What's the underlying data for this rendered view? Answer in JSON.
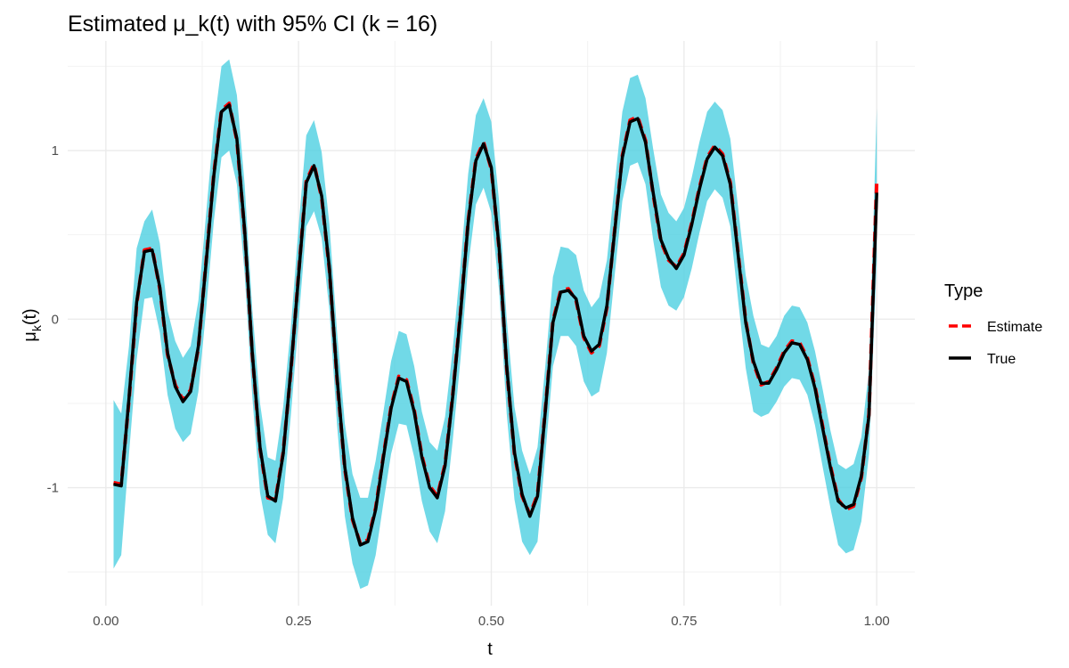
{
  "chart_data": {
    "type": "line",
    "title": "Estimated μ_k(t) with 95% CI (k = 16)",
    "xlabel": "t",
    "ylabel": "μk(t)",
    "xlim": [
      -0.0495,
      1.0495
    ],
    "ylim": [
      -1.7,
      1.65
    ],
    "x_ticks": [
      0,
      0.25,
      0.5,
      0.75,
      1
    ],
    "x_tick_labels": [
      "0.00",
      "0.25",
      "0.50",
      "0.75",
      "1.00"
    ],
    "y_ticks": [
      -1,
      0,
      1
    ],
    "y_tick_labels": [
      "-1",
      "0",
      "1"
    ],
    "grid": true,
    "legend": {
      "title": "Type",
      "position": "right",
      "entries": [
        {
          "label": "Estimate",
          "color": "#ff0000",
          "style": "dashed"
        },
        {
          "label": "True",
          "color": "#000000",
          "style": "solid"
        }
      ]
    },
    "ribbon_color": "#4dd0e1",
    "x": [
      0.01,
      0.02,
      0.03,
      0.04,
      0.05,
      0.06,
      0.07,
      0.08,
      0.09,
      0.1,
      0.11,
      0.12,
      0.13,
      0.14,
      0.15,
      0.16,
      0.17,
      0.18,
      0.19,
      0.2,
      0.21,
      0.22,
      0.23,
      0.24,
      0.25,
      0.26,
      0.27,
      0.28,
      0.29,
      0.3,
      0.31,
      0.32,
      0.33,
      0.34,
      0.35,
      0.36,
      0.37,
      0.38,
      0.39,
      0.4,
      0.41,
      0.42,
      0.43,
      0.44,
      0.45,
      0.46,
      0.47,
      0.48,
      0.49,
      0.5,
      0.51,
      0.52,
      0.53,
      0.54,
      0.55,
      0.56,
      0.57,
      0.58,
      0.59,
      0.6,
      0.61,
      0.62,
      0.63,
      0.64,
      0.65,
      0.66,
      0.67,
      0.68,
      0.69,
      0.7,
      0.71,
      0.72,
      0.73,
      0.74,
      0.75,
      0.76,
      0.77,
      0.78,
      0.79,
      0.8,
      0.81,
      0.82,
      0.83,
      0.84,
      0.85,
      0.86,
      0.87,
      0.88,
      0.89,
      0.9,
      0.91,
      0.92,
      0.93,
      0.94,
      0.95,
      0.96,
      0.97,
      0.98,
      0.99,
      1.0
    ],
    "series": [
      {
        "name": "True",
        "values": [
          -0.98,
          -0.99,
          -0.47,
          0.1,
          0.4,
          0.41,
          0.19,
          -0.2,
          -0.4,
          -0.49,
          -0.43,
          -0.16,
          0.33,
          0.85,
          1.23,
          1.27,
          1.07,
          0.53,
          -0.2,
          -0.76,
          -1.05,
          -1.08,
          -0.8,
          -0.3,
          0.26,
          0.81,
          0.91,
          0.73,
          0.3,
          -0.35,
          -0.88,
          -1.18,
          -1.34,
          -1.32,
          -1.13,
          -0.82,
          -0.53,
          -0.35,
          -0.37,
          -0.55,
          -0.82,
          -1.0,
          -1.06,
          -0.87,
          -0.46,
          0.03,
          0.57,
          0.94,
          1.04,
          0.9,
          0.43,
          -0.28,
          -0.79,
          -1.04,
          -1.17,
          -1.05,
          -0.55,
          -0.02,
          0.16,
          0.17,
          0.12,
          -0.1,
          -0.19,
          -0.15,
          0.08,
          0.52,
          0.96,
          1.17,
          1.19,
          1.05,
          0.75,
          0.47,
          0.36,
          0.3,
          0.38,
          0.56,
          0.77,
          0.95,
          1.02,
          0.97,
          0.8,
          0.39,
          -0.02,
          -0.25,
          -0.38,
          -0.38,
          -0.3,
          -0.2,
          -0.14,
          -0.15,
          -0.24,
          -0.41,
          -0.65,
          -0.88,
          -1.08,
          -1.12,
          -1.1,
          -0.93,
          -0.57,
          0.75
        ]
      },
      {
        "name": "Estimate",
        "values": [
          -0.97,
          -0.98,
          -0.48,
          0.09,
          0.41,
          0.42,
          0.18,
          -0.21,
          -0.39,
          -0.48,
          -0.42,
          -0.17,
          0.34,
          0.86,
          1.24,
          1.28,
          1.06,
          0.52,
          -0.21,
          -0.77,
          -1.06,
          -1.07,
          -0.79,
          -0.31,
          0.27,
          0.82,
          0.92,
          0.72,
          0.29,
          -0.36,
          -0.89,
          -1.19,
          -1.33,
          -1.31,
          -1.12,
          -0.81,
          -0.52,
          -0.34,
          -0.36,
          -0.54,
          -0.81,
          -0.99,
          -1.05,
          -0.86,
          -0.45,
          0.04,
          0.58,
          0.95,
          1.05,
          0.89,
          0.42,
          -0.29,
          -0.8,
          -1.05,
          -1.16,
          -1.04,
          -0.54,
          -0.01,
          0.17,
          0.18,
          0.11,
          -0.11,
          -0.2,
          -0.16,
          0.07,
          0.53,
          0.97,
          1.18,
          1.2,
          1.06,
          0.74,
          0.46,
          0.35,
          0.31,
          0.39,
          0.57,
          0.78,
          0.96,
          1.03,
          0.98,
          0.81,
          0.4,
          -0.01,
          -0.26,
          -0.39,
          -0.37,
          -0.29,
          -0.19,
          -0.13,
          -0.14,
          -0.23,
          -0.4,
          -0.64,
          -0.87,
          -1.07,
          -1.13,
          -1.11,
          -0.94,
          -0.56,
          0.82
        ]
      }
    ],
    "ribbon": {
      "lower": [
        -1.48,
        -1.4,
        -0.8,
        -0.24,
        0.12,
        0.13,
        -0.08,
        -0.45,
        -0.65,
        -0.73,
        -0.68,
        -0.43,
        0.05,
        0.58,
        0.96,
        1.0,
        0.8,
        0.27,
        -0.46,
        -1.03,
        -1.28,
        -1.33,
        -1.06,
        -0.57,
        -0.01,
        0.55,
        0.64,
        0.48,
        0.05,
        -0.63,
        -1.17,
        -1.45,
        -1.6,
        -1.58,
        -1.4,
        -1.09,
        -0.8,
        -0.62,
        -0.63,
        -0.82,
        -1.08,
        -1.26,
        -1.33,
        -1.14,
        -0.72,
        -0.24,
        0.31,
        0.68,
        0.78,
        0.63,
        0.17,
        -0.56,
        -1.07,
        -1.32,
        -1.4,
        -1.32,
        -0.81,
        -0.28,
        -0.1,
        -0.1,
        -0.16,
        -0.37,
        -0.46,
        -0.43,
        -0.2,
        0.26,
        0.7,
        0.91,
        0.93,
        0.8,
        0.47,
        0.19,
        0.08,
        0.05,
        0.13,
        0.3,
        0.51,
        0.7,
        0.77,
        0.72,
        0.55,
        0.12,
        -0.29,
        -0.55,
        -0.58,
        -0.56,
        -0.49,
        -0.4,
        -0.35,
        -0.36,
        -0.45,
        -0.63,
        -0.88,
        -1.12,
        -1.34,
        -1.39,
        -1.37,
        -1.2,
        -0.8,
        0.35
      ],
      "upper": [
        -0.48,
        -0.56,
        -0.16,
        0.42,
        0.58,
        0.65,
        0.45,
        0.05,
        -0.13,
        -0.23,
        -0.16,
        0.11,
        0.62,
        1.14,
        1.5,
        1.54,
        1.33,
        0.8,
        0.06,
        -0.5,
        -0.82,
        -0.84,
        -0.52,
        -0.05,
        0.55,
        1.09,
        1.18,
        0.99,
        0.56,
        -0.08,
        -0.62,
        -0.92,
        -1.06,
        -1.06,
        -0.84,
        -0.55,
        -0.25,
        -0.07,
        -0.09,
        -0.28,
        -0.55,
        -0.73,
        -0.78,
        -0.58,
        -0.18,
        0.32,
        0.86,
        1.21,
        1.31,
        1.17,
        0.7,
        0.0,
        -0.52,
        -0.78,
        -0.92,
        -0.76,
        -0.28,
        0.25,
        0.43,
        0.42,
        0.38,
        0.17,
        0.07,
        0.13,
        0.35,
        0.8,
        1.23,
        1.43,
        1.45,
        1.31,
        1.01,
        0.74,
        0.63,
        0.58,
        0.66,
        0.84,
        1.05,
        1.23,
        1.29,
        1.24,
        1.07,
        0.67,
        0.26,
        0.02,
        -0.15,
        -0.17,
        -0.1,
        0.02,
        0.08,
        0.07,
        -0.02,
        -0.19,
        -0.42,
        -0.66,
        -0.86,
        -0.89,
        -0.86,
        -0.7,
        -0.3,
        1.25
      ]
    }
  }
}
